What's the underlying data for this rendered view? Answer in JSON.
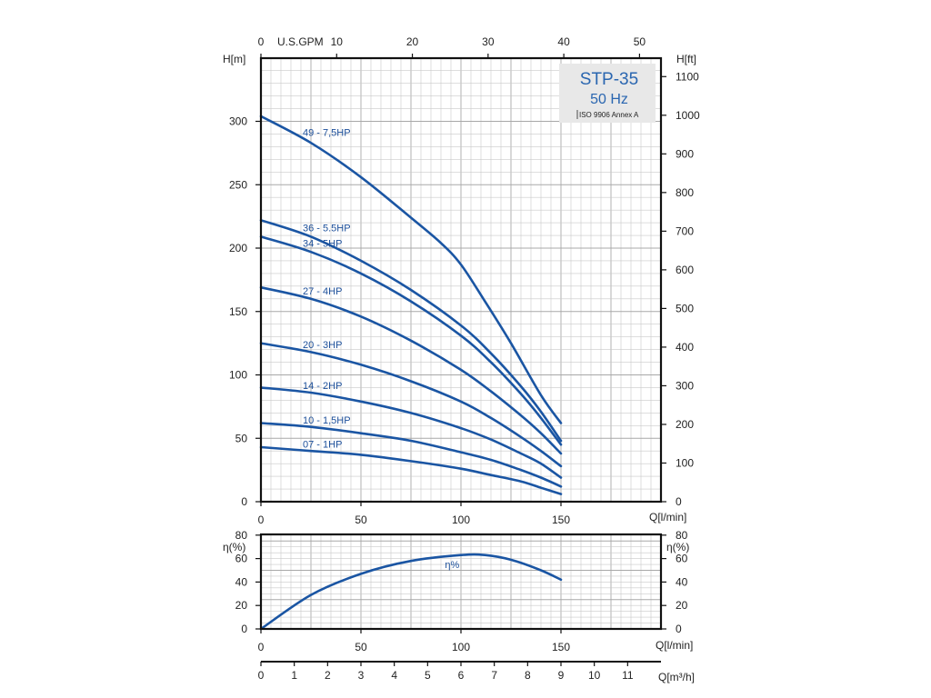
{
  "chart_data": [
    {
      "type": "line",
      "title": "STP-35",
      "subtitle": "50 Hz",
      "note": "ISO 9906 Annex A",
      "xlabel": "Q[l/min]",
      "ylabel": "H[m]",
      "ylabel_right": "H[ft]",
      "xlabel_top": "U.S.GPM",
      "xlim": [
        0,
        200
      ],
      "ylim": [
        0,
        350
      ],
      "x_ticks": [
        0,
        50,
        100,
        150
      ],
      "y_ticks": [
        0,
        50,
        100,
        150,
        200,
        250,
        300
      ],
      "y_ticks_right": [
        0,
        100,
        200,
        300,
        400,
        500,
        600,
        700,
        800,
        900,
        1000,
        1100
      ],
      "x_ticks_top": [
        0,
        10,
        20,
        30,
        40,
        50
      ],
      "grid": true,
      "series": [
        {
          "name": "49 - 7,5HP",
          "x": [
            0,
            25,
            50,
            75,
            90,
            100,
            112,
            125,
            140,
            150
          ],
          "y": [
            304,
            283,
            256,
            224,
            204,
            187,
            158,
            125,
            84,
            62
          ]
        },
        {
          "name": "36 - 5.5HP",
          "x": [
            0,
            25,
            50,
            75,
            100,
            115,
            130,
            140,
            150
          ],
          "y": [
            222,
            209,
            190,
            167,
            139,
            117,
            91,
            71,
            48
          ]
        },
        {
          "name": "34 - 5HP",
          "x": [
            0,
            25,
            50,
            75,
            100,
            115,
            130,
            140,
            150
          ],
          "y": [
            209,
            197,
            180,
            158,
            131,
            110,
            85,
            66,
            45
          ]
        },
        {
          "name": "27 - 4HP",
          "x": [
            0,
            25,
            50,
            75,
            100,
            115,
            130,
            140,
            150
          ],
          "y": [
            169,
            160,
            146,
            127,
            104,
            87,
            68,
            54,
            38
          ]
        },
        {
          "name": "20 - 3HP",
          "x": [
            0,
            25,
            50,
            75,
            100,
            115,
            130,
            140,
            150
          ],
          "y": [
            125,
            118,
            108,
            95,
            79,
            66,
            51,
            40,
            28
          ]
        },
        {
          "name": "14 - 2HP",
          "x": [
            0,
            25,
            50,
            75,
            100,
            115,
            130,
            140,
            150
          ],
          "y": [
            90,
            86,
            79,
            70,
            58,
            49,
            38,
            30,
            19
          ]
        },
        {
          "name": "10 - 1,5HP",
          "x": [
            0,
            25,
            50,
            75,
            100,
            115,
            130,
            140,
            150
          ],
          "y": [
            62,
            59,
            54,
            48,
            39,
            33,
            25,
            19,
            12
          ]
        },
        {
          "name": "07 - 1HP",
          "x": [
            0,
            25,
            50,
            75,
            100,
            115,
            130,
            140,
            150
          ],
          "y": [
            43,
            40,
            37,
            32,
            26,
            21,
            16,
            11,
            6
          ]
        }
      ]
    },
    {
      "type": "line",
      "xlabel": "Q[l/min]",
      "ylabel": "η(%)",
      "ylabel_right": "η(%)",
      "xlim": [
        0,
        200
      ],
      "ylim": [
        0,
        80
      ],
      "x_ticks": [
        0,
        50,
        100,
        150
      ],
      "y_ticks": [
        0,
        20,
        40,
        60,
        80
      ],
      "grid": true,
      "series": [
        {
          "name": "η%",
          "x": [
            0,
            25,
            50,
            75,
            100,
            112,
            125,
            140,
            150
          ],
          "y": [
            0,
            29,
            47,
            58,
            63,
            63,
            59,
            50,
            42
          ]
        }
      ]
    },
    {
      "type": "axis",
      "xlabel": "Q[m³/h]",
      "xlim": [
        0,
        12
      ],
      "x_ticks": [
        0,
        1,
        2,
        3,
        4,
        5,
        6,
        7,
        8,
        9,
        10,
        11
      ]
    }
  ],
  "colors": {
    "curve": "#1a55a3",
    "label": "#1c4f9a",
    "model": "#2a66b0",
    "box": "#e8e8e8"
  }
}
